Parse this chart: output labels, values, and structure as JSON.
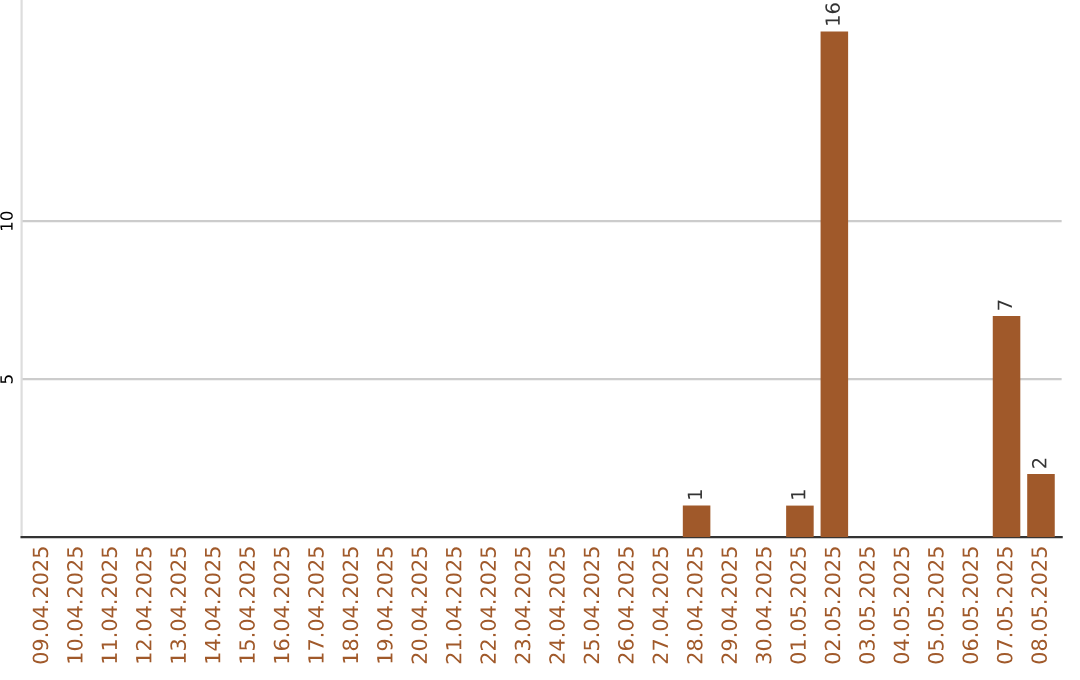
{
  "chart_data": {
    "type": "bar",
    "categories": [
      "09.04.2025",
      "10.04.2025",
      "11.04.2025",
      "12.04.2025",
      "13.04.2025",
      "14.04.2025",
      "15.04.2025",
      "16.04.2025",
      "17.04.2025",
      "18.04.2025",
      "19.04.2025",
      "20.04.2025",
      "21.04.2025",
      "22.04.2025",
      "23.04.2025",
      "24.04.2025",
      "25.04.2025",
      "26.04.2025",
      "27.04.2025",
      "28.04.2025",
      "29.04.2025",
      "30.04.2025",
      "01.05.2025",
      "02.05.2025",
      "03.05.2025",
      "04.05.2025",
      "05.05.2025",
      "06.05.2025",
      "07.05.2025",
      "08.05.2025"
    ],
    "values": [
      0,
      0,
      0,
      0,
      0,
      0,
      0,
      0,
      0,
      0,
      0,
      0,
      0,
      0,
      0,
      0,
      0,
      0,
      0,
      1,
      0,
      0,
      1,
      16,
      0,
      0,
      0,
      0,
      7,
      2
    ],
    "value_labels": [
      null,
      null,
      null,
      null,
      null,
      null,
      null,
      null,
      null,
      null,
      null,
      null,
      null,
      null,
      null,
      null,
      null,
      null,
      null,
      "1",
      null,
      null,
      "1",
      "16",
      null,
      null,
      null,
      null,
      "7",
      "2"
    ],
    "color": "#a0592a",
    "ylim": [
      0,
      17
    ],
    "yticks": [
      5,
      10
    ],
    "grid": "y"
  }
}
